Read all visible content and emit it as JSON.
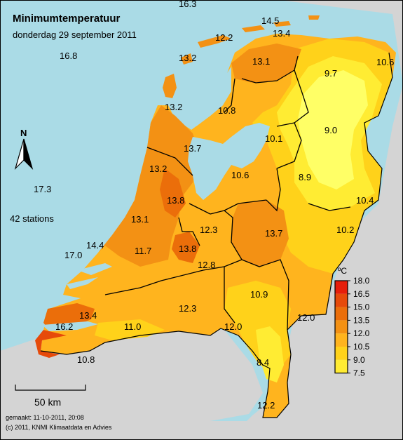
{
  "title": "Minimumtemperatuur",
  "subtitle": "donderdag 29 september 2011",
  "stations_text": "42 stations",
  "north_label": "N",
  "scale_label": "50 km",
  "footer_made": "gemaakt: 11-10-2011, 20:08",
  "footer_copyright": "(c) 2011, KNMI Klimaatdata en Advies",
  "colors": {
    "sea": "#aadbe6",
    "land_outside": "#d4d4d4",
    "band_7_5": "#ffff66",
    "band_9": "#ffec33",
    "band_10_5": "#ffd21a",
    "band_12": "#ffb41e",
    "band_13_5": "#f39114",
    "band_15": "#eb6e0a",
    "band_16_5": "#e64a0a",
    "band_18": "#e61e0a"
  },
  "legend": {
    "unit": "ºC",
    "ticks": [
      "18.0",
      "16.5",
      "15.0",
      "13.5",
      "12.0",
      "10.5",
      "9.0",
      "7.5"
    ]
  },
  "values": [
    {
      "id": "v1",
      "text": "16.3"
    },
    {
      "id": "v2",
      "text": "14.5"
    },
    {
      "id": "v3",
      "text": "12.2"
    },
    {
      "id": "v4",
      "text": "13.4"
    },
    {
      "id": "v5",
      "text": "16.8"
    },
    {
      "id": "v6",
      "text": "13.2"
    },
    {
      "id": "v7",
      "text": "13.1"
    },
    {
      "id": "v8",
      "text": "9.7"
    },
    {
      "id": "v9",
      "text": "10.6"
    },
    {
      "id": "v10",
      "text": "13.2"
    },
    {
      "id": "v11",
      "text": "10.8"
    },
    {
      "id": "v12",
      "text": "9.0"
    },
    {
      "id": "v13",
      "text": "10.1"
    },
    {
      "id": "v14",
      "text": "13.7"
    },
    {
      "id": "v15",
      "text": "13.2"
    },
    {
      "id": "v16",
      "text": "10.6"
    },
    {
      "id": "v17",
      "text": "8.9"
    },
    {
      "id": "v18",
      "text": "17.3"
    },
    {
      "id": "v19",
      "text": "10.4"
    },
    {
      "id": "v20",
      "text": "13.8"
    },
    {
      "id": "v21",
      "text": "13.1"
    },
    {
      "id": "v22",
      "text": "12.3"
    },
    {
      "id": "v23",
      "text": "13.7"
    },
    {
      "id": "v24",
      "text": "10.2"
    },
    {
      "id": "v25",
      "text": "14.4"
    },
    {
      "id": "v26",
      "text": "11.7"
    },
    {
      "id": "v27",
      "text": "13.8"
    },
    {
      "id": "v28",
      "text": "17.0"
    },
    {
      "id": "v29",
      "text": "12.8"
    },
    {
      "id": "v30",
      "text": "10.9"
    },
    {
      "id": "v31",
      "text": "13.4"
    },
    {
      "id": "v32",
      "text": "12.3"
    },
    {
      "id": "v33",
      "text": "12.0"
    },
    {
      "id": "v34",
      "text": "16.2"
    },
    {
      "id": "v35",
      "text": "11.0"
    },
    {
      "id": "v36",
      "text": "12.0"
    },
    {
      "id": "v37",
      "text": "8.4"
    },
    {
      "id": "v38",
      "text": "10.8"
    },
    {
      "id": "v39",
      "text": "12.2"
    }
  ]
}
